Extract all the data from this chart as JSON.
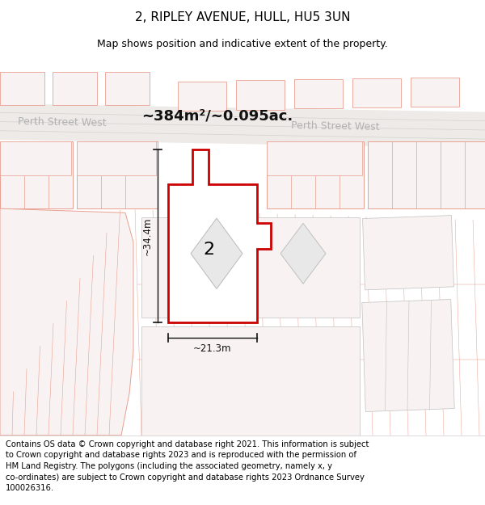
{
  "title": "2, RIPLEY AVENUE, HULL, HU5 3UN",
  "subtitle": "Map shows position and indicative extent of the property.",
  "area_label": "~384m²/~0.095ac.",
  "street_name": "Perth Street West",
  "property_number": "2",
  "dim_height": "~34.4m",
  "dim_width": "~21.3m",
  "footer": "Contains OS data © Crown copyright and database right 2021. This information is subject to Crown copyright and database rights 2023 and is reproduced with the permission of HM Land Registry. The polygons (including the associated geometry, namely x, y co-ordinates) are subject to Crown copyright and database rights 2023 Ordnance Survey 100026316.",
  "map_bg": "#f8f4f2",
  "road_fill": "#edeae8",
  "building_outline": "#e8a090",
  "building_fill": "#f8f2f2",
  "plot_line": "#e8a090",
  "prop_fill": "#ffffff",
  "prop_outline": "#cc0000",
  "dim_color": "#111111",
  "street_color": "#b0b0b0",
  "area_color": "#111111",
  "gray_outline": "#c0c0c0",
  "gray_fill": "#eeeeee",
  "title_fontsize": 11,
  "subtitle_fontsize": 9,
  "footer_fontsize": 7.2,
  "area_fontsize": 13,
  "street_fontsize": 9,
  "prop_number_fontsize": 16
}
